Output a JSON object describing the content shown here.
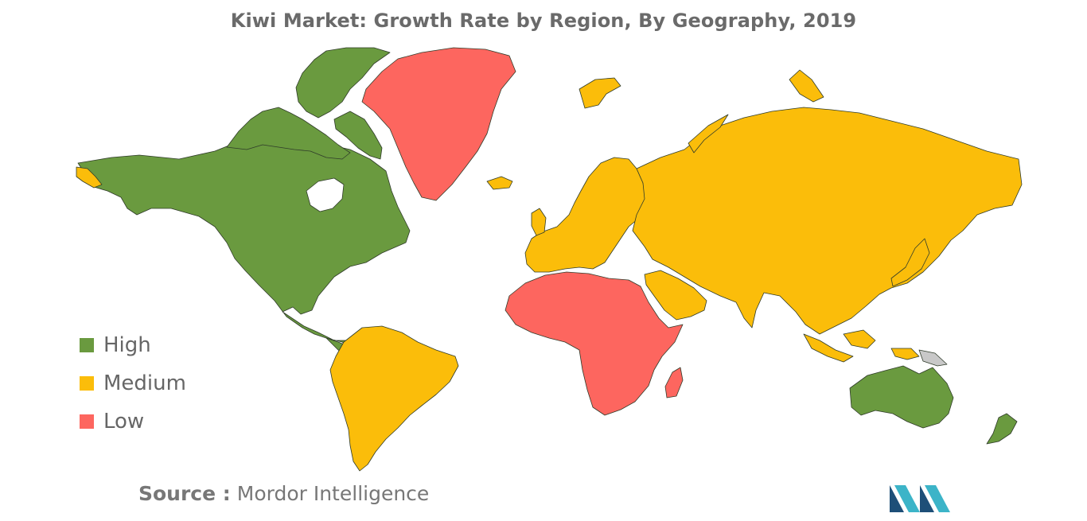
{
  "title": "Kiwi Market: Growth Rate by Region, By Geography, 2019",
  "legend": [
    {
      "label": "High",
      "color": "#6a9a3f"
    },
    {
      "label": "Medium",
      "color": "#fbbd0a"
    },
    {
      "label": "Low",
      "color": "#fd665f"
    }
  ],
  "map_data": {
    "type": "choropleth",
    "category_colors": {
      "High": "#6a9a3f",
      "Medium": "#fbbd0a",
      "Low": "#fd665f",
      "No data": "#c8c8c8"
    },
    "regions": [
      {
        "name": "North America",
        "category": "High"
      },
      {
        "name": "Greenland",
        "category": "Low"
      },
      {
        "name": "South America",
        "category": "Medium"
      },
      {
        "name": "Europe",
        "category": "Medium"
      },
      {
        "name": "Asia-Pacific",
        "category": "Medium"
      },
      {
        "name": "Middle East",
        "category": "Medium"
      },
      {
        "name": "Africa",
        "category": "Low"
      },
      {
        "name": "Australia",
        "category": "High"
      },
      {
        "name": "New Zealand",
        "category": "High"
      }
    ]
  },
  "source": {
    "key": "Source :",
    "value": "Mordor Intelligence"
  },
  "logo": {
    "name": "mordor-intelligence-logo",
    "colors": [
      "#1e4f78",
      "#3cb4c8"
    ]
  }
}
